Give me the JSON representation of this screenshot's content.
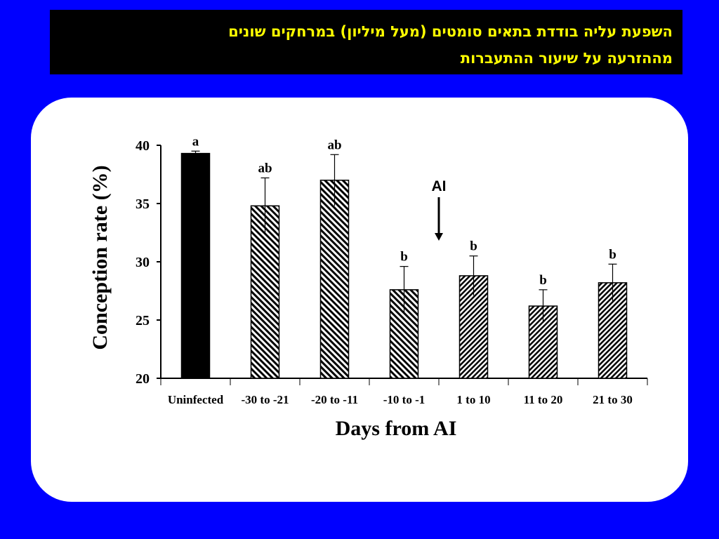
{
  "header": {
    "title_line1": "השפעת עליה בודדת בתאים סומטים (מעל מיליון) במרחקים שונים",
    "title_line2": "מההזרעה על שיעור ההתעברות"
  },
  "chart_data": {
    "type": "bar",
    "xlabel": "Days from AI",
    "ylabel": "Conception rate (%)",
    "ylim": [
      20,
      40
    ],
    "yticks": [
      20,
      25,
      30,
      35,
      40
    ],
    "categories": [
      "Uninfected",
      "-30 to -21",
      "-20 to -11",
      "-10  to -1",
      "1 to 10",
      "11 to 20",
      "21 to 30"
    ],
    "values": [
      39.3,
      34.8,
      37.0,
      27.6,
      28.8,
      26.2,
      28.2
    ],
    "error": [
      0.2,
      2.4,
      2.2,
      2.0,
      1.7,
      1.4,
      1.6
    ],
    "significance": [
      "a",
      "ab",
      "ab",
      "b",
      "b",
      "b",
      "b"
    ],
    "fills": [
      "solid",
      "hatch-back",
      "hatch-back",
      "hatch-back",
      "hatch-fwd",
      "hatch-fwd",
      "hatch-fwd"
    ],
    "annotation": {
      "text": "AI",
      "between": [
        3,
        4
      ]
    },
    "colors": {
      "bar_solid": "#000000",
      "hatch": "#000000"
    }
  },
  "colors": {
    "background": "#0000ff",
    "title_bg": "#000000",
    "title_text": "#ffff00",
    "panel": "#ffffff"
  }
}
